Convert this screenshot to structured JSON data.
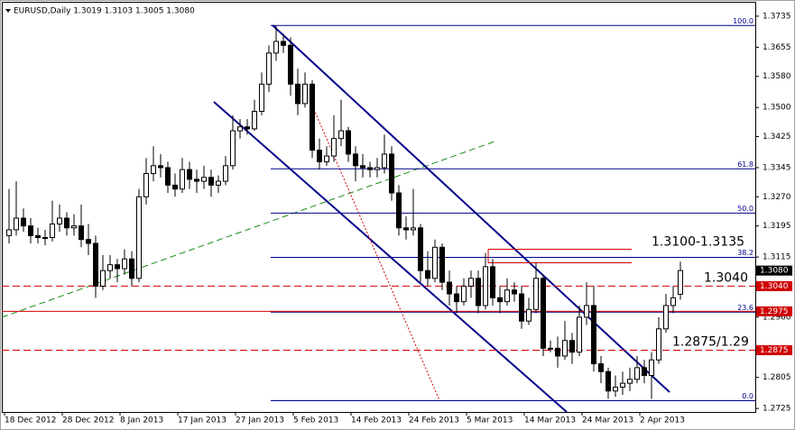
{
  "chart_data": {
    "type": "candlestick",
    "title": "EURUSD,Daily  1.3019 1.3103 1.3005 1.3080",
    "ylim": [
      1.2716,
      1.3772
    ],
    "yticks": [
      {
        "value": 1.3735,
        "label": "1.3735"
      },
      {
        "value": 1.3655,
        "label": "1.3655"
      },
      {
        "value": 1.358,
        "label": "1.3580"
      },
      {
        "value": 1.35,
        "label": "1.3500"
      },
      {
        "value": 1.3425,
        "label": "1.3425"
      },
      {
        "value": 1.3345,
        "label": "1.3345"
      },
      {
        "value": 1.327,
        "label": "1.3270"
      },
      {
        "value": 1.3195,
        "label": "1.3195"
      },
      {
        "value": 1.3115,
        "label": "1.3115"
      },
      {
        "value": 1.296,
        "label": "1.2960"
      },
      {
        "value": 1.2805,
        "label": "1.2805"
      },
      {
        "value": 1.2725,
        "label": "1.2725"
      }
    ],
    "xticks": [
      {
        "value": 0,
        "label": "18 Dec 2012"
      },
      {
        "value": 8,
        "label": "28 Dec 2012"
      },
      {
        "value": 16,
        "label": "8 Jan 2013"
      },
      {
        "value": 24,
        "label": "17 Jan 2013"
      },
      {
        "value": 32,
        "label": "27 Jan 2013"
      },
      {
        "value": 40,
        "label": "5 Feb 2013"
      },
      {
        "value": 48,
        "label": "14 Feb 2013"
      },
      {
        "value": 56,
        "label": "24 Feb 2013"
      },
      {
        "value": 64,
        "label": "5 Mar 2013"
      },
      {
        "value": 72,
        "label": "14 Mar 2013"
      },
      {
        "value": 80,
        "label": "24 Mar 2013"
      },
      {
        "value": 88,
        "label": "2 Apr 2013"
      }
    ],
    "up_color": "#ffffff",
    "down_color": "#000000",
    "ohlc": [
      [
        1.317,
        1.329,
        1.315,
        1.3185
      ],
      [
        1.3185,
        1.331,
        1.317,
        1.3215
      ],
      [
        1.3215,
        1.324,
        1.318,
        1.3195
      ],
      [
        1.3195,
        1.3215,
        1.315,
        1.317
      ],
      [
        1.317,
        1.319,
        1.315,
        1.3165
      ],
      [
        1.3165,
        1.3185,
        1.3145,
        1.3165
      ],
      [
        1.3165,
        1.326,
        1.3155,
        1.32
      ],
      [
        1.32,
        1.325,
        1.318,
        1.3215
      ],
      [
        1.3215,
        1.323,
        1.317,
        1.319
      ],
      [
        1.319,
        1.3225,
        1.317,
        1.3195
      ],
      [
        1.3195,
        1.325,
        1.314,
        1.316
      ],
      [
        1.316,
        1.32,
        1.312,
        1.315
      ],
      [
        1.315,
        1.317,
        1.301,
        1.304
      ],
      [
        1.304,
        1.312,
        1.303,
        1.308
      ],
      [
        1.308,
        1.312,
        1.306,
        1.3095
      ],
      [
        1.3095,
        1.311,
        1.305,
        1.3085
      ],
      [
        1.3085,
        1.3135,
        1.307,
        1.311
      ],
      [
        1.311,
        1.313,
        1.304,
        1.306
      ],
      [
        1.306,
        1.329,
        1.305,
        1.327
      ],
      [
        1.327,
        1.337,
        1.325,
        1.333
      ],
      [
        1.333,
        1.34,
        1.331,
        1.335
      ],
      [
        1.335,
        1.338,
        1.332,
        1.3345
      ],
      [
        1.3345,
        1.336,
        1.328,
        1.33
      ],
      [
        1.33,
        1.333,
        1.327,
        1.329
      ],
      [
        1.329,
        1.337,
        1.328,
        1.334
      ],
      [
        1.334,
        1.336,
        1.329,
        1.3315
      ],
      [
        1.3315,
        1.334,
        1.328,
        1.331
      ],
      [
        1.331,
        1.335,
        1.329,
        1.332
      ],
      [
        1.332,
        1.334,
        1.327,
        1.33
      ],
      [
        1.33,
        1.3325,
        1.328,
        1.331
      ],
      [
        1.331,
        1.3375,
        1.33,
        1.335
      ],
      [
        1.335,
        1.348,
        1.334,
        1.344
      ],
      [
        1.344,
        1.347,
        1.342,
        1.345
      ],
      [
        1.345,
        1.347,
        1.343,
        1.3445
      ],
      [
        1.3445,
        1.352,
        1.344,
        1.349
      ],
      [
        1.349,
        1.359,
        1.348,
        1.356
      ],
      [
        1.356,
        1.366,
        1.354,
        1.364
      ],
      [
        1.364,
        1.3711,
        1.362,
        1.367
      ],
      [
        1.367,
        1.369,
        1.364,
        1.366
      ],
      [
        1.366,
        1.368,
        1.353,
        1.356
      ],
      [
        1.356,
        1.36,
        1.348,
        1.351
      ],
      [
        1.351,
        1.359,
        1.35,
        1.356
      ],
      [
        1.356,
        1.357,
        1.337,
        1.339
      ],
      [
        1.339,
        1.342,
        1.334,
        1.336
      ],
      [
        1.336,
        1.34,
        1.335,
        1.3375
      ],
      [
        1.3375,
        1.348,
        1.336,
        1.342
      ],
      [
        1.342,
        1.352,
        1.34,
        1.344
      ],
      [
        1.344,
        1.345,
        1.336,
        1.338
      ],
      [
        1.338,
        1.34,
        1.331,
        1.335
      ],
      [
        1.335,
        1.338,
        1.332,
        1.3345
      ],
      [
        1.3345,
        1.336,
        1.332,
        1.334
      ],
      [
        1.334,
        1.337,
        1.332,
        1.3345
      ],
      [
        1.3345,
        1.343,
        1.333,
        1.338
      ],
      [
        1.338,
        1.34,
        1.326,
        1.328
      ],
      [
        1.328,
        1.33,
        1.317,
        1.319
      ],
      [
        1.319,
        1.322,
        1.316,
        1.3185
      ],
      [
        1.3185,
        1.329,
        1.317,
        1.319
      ],
      [
        1.319,
        1.32,
        1.305,
        1.308
      ],
      [
        1.308,
        1.313,
        1.304,
        1.306
      ],
      [
        1.306,
        1.316,
        1.305,
        1.314
      ],
      [
        1.314,
        1.315,
        1.303,
        1.305
      ],
      [
        1.305,
        1.308,
        1.299,
        1.302
      ],
      [
        1.302,
        1.304,
        1.297,
        1.3
      ],
      [
        1.3,
        1.306,
        1.299,
        1.304
      ],
      [
        1.304,
        1.308,
        1.301,
        1.306
      ],
      [
        1.306,
        1.308,
        1.297,
        1.299
      ],
      [
        1.299,
        1.3125,
        1.298,
        1.309
      ],
      [
        1.309,
        1.311,
        1.299,
        1.301
      ],
      [
        1.301,
        1.304,
        1.297,
        1.3
      ],
      [
        1.3,
        1.306,
        1.299,
        1.303
      ],
      [
        1.303,
        1.305,
        1.3,
        1.302
      ],
      [
        1.302,
        1.304,
        1.293,
        1.295
      ],
      [
        1.295,
        1.301,
        1.294,
        1.298
      ],
      [
        1.298,
        1.31,
        1.297,
        1.306
      ],
      [
        1.306,
        1.307,
        1.286,
        1.288
      ],
      [
        1.288,
        1.29,
        1.287,
        1.288
      ],
      [
        1.288,
        1.291,
        1.283,
        1.286
      ],
      [
        1.286,
        1.295,
        1.285,
        1.29
      ],
      [
        1.29,
        1.292,
        1.284,
        1.287
      ],
      [
        1.287,
        1.299,
        1.286,
        1.296
      ],
      [
        1.296,
        1.305,
        1.294,
        1.299
      ],
      [
        1.299,
        1.304,
        1.282,
        1.284
      ],
      [
        1.284,
        1.286,
        1.279,
        1.282
      ],
      [
        1.282,
        1.283,
        1.275,
        1.277
      ],
      [
        1.277,
        1.281,
        1.2755,
        1.278
      ],
      [
        1.278,
        1.282,
        1.276,
        1.279
      ],
      [
        1.279,
        1.283,
        1.277,
        1.28
      ],
      [
        1.28,
        1.286,
        1.279,
        1.283
      ],
      [
        1.283,
        1.285,
        1.279,
        1.281
      ],
      [
        1.281,
        1.287,
        1.275,
        1.285
      ],
      [
        1.285,
        1.296,
        1.284,
        1.293
      ],
      [
        1.293,
        1.302,
        1.292,
        1.299
      ],
      [
        1.299,
        1.304,
        1.297,
        1.301
      ],
      [
        1.3019,
        1.3103,
        1.3005,
        1.308
      ]
    ],
    "last_price": {
      "value": 1.308,
      "label": "1.3080",
      "color": "#000000"
    },
    "price_lines": [
      {
        "value": 1.304,
        "label": "1.3040",
        "color": "#d00000",
        "style": "dashed"
      },
      {
        "value": 1.2975,
        "label": "1.2975",
        "color": "#d00000",
        "style": "solid"
      },
      {
        "value": 1.2875,
        "label": "1.2875",
        "color": "#d00000",
        "style": "dashed"
      }
    ],
    "fibonacci": {
      "high": 1.3711,
      "low": 1.2745,
      "color": "#00008b",
      "levels": [
        {
          "value": 100,
          "label": "100.0"
        },
        {
          "value": 61.8,
          "label": "61.8"
        },
        {
          "value": 50,
          "label": "50.0"
        },
        {
          "value": 38.2,
          "label": "38.2"
        },
        {
          "value": 23.6,
          "label": "23.6"
        },
        {
          "value": 0,
          "label": "0.0"
        }
      ]
    },
    "zone": {
      "values": [
        1.31,
        1.3135
      ],
      "label": "1.3100-1.3135",
      "color": "#d00000"
    },
    "annotations": [
      {
        "value": 1.304,
        "label": "1.3040"
      },
      {
        "value": 1.2875,
        "label": "1.2875/1.29"
      }
    ]
  }
}
